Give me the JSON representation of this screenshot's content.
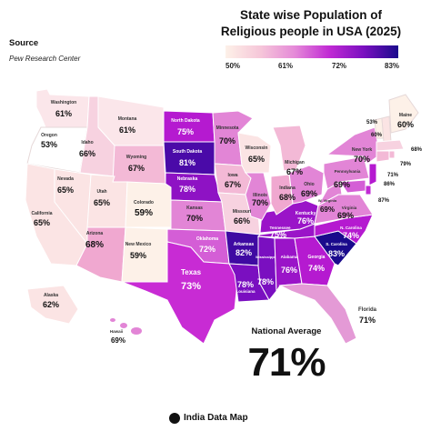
{
  "title": "State wise Population of Religious people in USA (2025)",
  "source": {
    "heading": "Source",
    "name": "Pew Research Center"
  },
  "legend": {
    "ticks": [
      "50%",
      "61%",
      "72%",
      "83%"
    ],
    "colors": [
      "#fdf1e8",
      "#f6c7d9",
      "#e58ad8",
      "#c12ad4",
      "#7a0fc0",
      "#1a0a8c"
    ]
  },
  "national_average": {
    "label": "National Average",
    "value": "71%"
  },
  "brand": {
    "name": "India Data Map",
    "icon": "map-pin-icon"
  },
  "states": [
    {
      "name": "Washington",
      "value": "61%"
    },
    {
      "name": "Oregon",
      "value": "53%"
    },
    {
      "name": "California",
      "value": "65%"
    },
    {
      "name": "Nevada",
      "value": "65%"
    },
    {
      "name": "Idaho",
      "value": "66%"
    },
    {
      "name": "Montana",
      "value": "61%"
    },
    {
      "name": "Wyoming",
      "value": "67%"
    },
    {
      "name": "Utah",
      "value": "65%"
    },
    {
      "name": "Colorado",
      "value": "59%"
    },
    {
      "name": "Arizona",
      "value": "68%"
    },
    {
      "name": "New Mexico",
      "value": "59%"
    },
    {
      "name": "North Dakota",
      "value": "75%"
    },
    {
      "name": "South Dakota",
      "value": "81%"
    },
    {
      "name": "Nebraska",
      "value": "78%"
    },
    {
      "name": "Kansas",
      "value": "70%"
    },
    {
      "name": "Oklahoma",
      "value": "72%"
    },
    {
      "name": "Texas",
      "value": "73%"
    },
    {
      "name": "Minnesota",
      "value": "70%"
    },
    {
      "name": "Iowa",
      "value": "67%"
    },
    {
      "name": "Missouri",
      "value": "66%"
    },
    {
      "name": "Arkansas",
      "value": "82%"
    },
    {
      "name": "Louisiana",
      "value": "78%"
    },
    {
      "name": "Wisconsin",
      "value": "65%"
    },
    {
      "name": "Illinois",
      "value": "70%"
    },
    {
      "name": "Michigan",
      "value": "67%"
    },
    {
      "name": "Indiana",
      "value": "68%"
    },
    {
      "name": "Ohio",
      "value": "69%"
    },
    {
      "name": "Kentucky",
      "value": "76%"
    },
    {
      "name": "Tennessee",
      "value": "75%"
    },
    {
      "name": "Mississippi",
      "value": "78%"
    },
    {
      "name": "Alabama",
      "value": "76%"
    },
    {
      "name": "Georgia",
      "value": "74%"
    },
    {
      "name": "Florida",
      "value": "71%"
    },
    {
      "name": "S. Carolina",
      "value": "83%"
    },
    {
      "name": "N. Carolina",
      "value": "74%"
    },
    {
      "name": "Virginia",
      "value": "69%"
    },
    {
      "name": "W. Virginia",
      "value": "69%"
    },
    {
      "name": "Pennsylvania",
      "value": "69%"
    },
    {
      "name": "New York",
      "value": "70%"
    },
    {
      "name": "Maine",
      "value": "60%"
    },
    {
      "name": "Alaska",
      "value": "62%"
    },
    {
      "name": "Hawaii",
      "value": "69%"
    }
  ],
  "small_labels": [
    "53%",
    "60%",
    "68%",
    "79%",
    "71%",
    "86%",
    "87%"
  ]
}
